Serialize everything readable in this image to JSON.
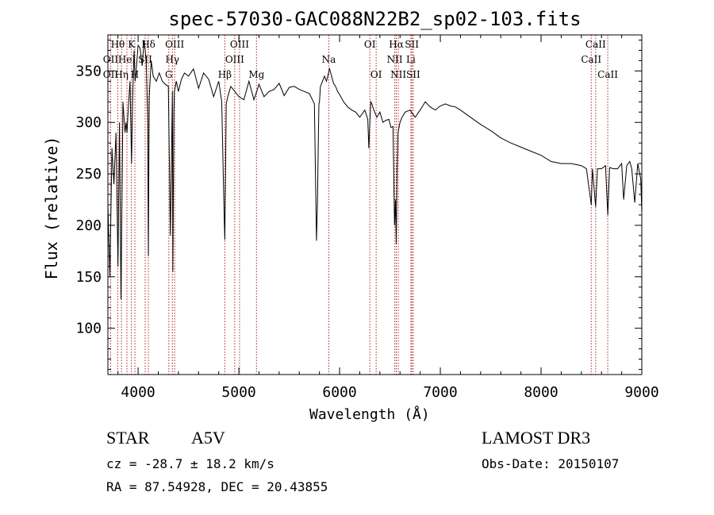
{
  "chart_data": {
    "type": "line",
    "title": "spec-57030-GAC088N22B2_sp02-103.fits",
    "xlabel": "Wavelength (Å)",
    "ylabel": "Flux (relative)",
    "xlim": [
      3700,
      9000
    ],
    "ylim": [
      55,
      385
    ],
    "xticks": [
      4000,
      5000,
      6000,
      7000,
      8000,
      9000
    ],
    "yticks": [
      100,
      150,
      200,
      250,
      300,
      350
    ],
    "series": [
      {
        "name": "spectrum",
        "x": [
          3700,
          3720,
          3740,
          3760,
          3780,
          3800,
          3815,
          3830,
          3850,
          3870,
          3880,
          3890,
          3900,
          3920,
          3935,
          3945,
          3960,
          3970,
          3980,
          4000,
          4020,
          4040,
          4060,
          4080,
          4095,
          4102,
          4110,
          4130,
          4150,
          4180,
          4210,
          4240,
          4270,
          4300,
          4320,
          4340,
          4345,
          4355,
          4360,
          4380,
          4400,
          4430,
          4460,
          4500,
          4550,
          4600,
          4650,
          4700,
          4750,
          4800,
          4830,
          4845,
          4855,
          4861,
          4865,
          4875,
          4890,
          4920,
          4960,
          5000,
          5050,
          5100,
          5150,
          5200,
          5250,
          5300,
          5350,
          5400,
          5450,
          5500,
          5550,
          5600,
          5650,
          5700,
          5750,
          5770,
          5780,
          5790,
          5795,
          5800,
          5810,
          5830,
          5850,
          5870,
          5890,
          5900,
          5920,
          5940,
          5960,
          5980,
          6000,
          6040,
          6080,
          6120,
          6160,
          6200,
          6250,
          6280,
          6290,
          6300,
          6310,
          6320,
          6340,
          6370,
          6400,
          6430,
          6460,
          6490,
          6510,
          6530,
          6545,
          6555,
          6563,
          6570,
          6580,
          6600,
          6620,
          6650,
          6700,
          6750,
          6800,
          6850,
          6900,
          6950,
          7000,
          7050,
          7100,
          7150,
          7200,
          7300,
          7400,
          7500,
          7600,
          7700,
          7800,
          7900,
          8000,
          8100,
          8200,
          8300,
          8400,
          8450,
          8498,
          8510,
          8542,
          8560,
          8600,
          8640,
          8662,
          8680,
          8720,
          8760,
          8800,
          8820,
          8850,
          8880,
          8900,
          8930,
          8960,
          8990,
          9000
        ],
        "values": [
          220,
          150,
          275,
          240,
          290,
          160,
          300,
          128,
          320,
          290,
          300,
          290,
          310,
          340,
          260,
          320,
          370,
          340,
          350,
          375,
          372,
          355,
          380,
          360,
          300,
          170,
          325,
          360,
          345,
          340,
          348,
          340,
          337,
          335,
          190,
          330,
          155,
          312,
          330,
          340,
          330,
          342,
          348,
          345,
          352,
          333,
          348,
          342,
          325,
          340,
          320,
          250,
          205,
          186,
          225,
          318,
          325,
          335,
          330,
          325,
          322,
          340,
          322,
          337,
          325,
          330,
          332,
          338,
          326,
          334,
          335,
          332,
          330,
          328,
          318,
          185,
          220,
          290,
          318,
          320,
          335,
          340,
          345,
          340,
          348,
          352,
          345,
          338,
          335,
          330,
          327,
          320,
          315,
          312,
          310,
          305,
          312,
          303,
          275,
          300,
          320,
          318,
          312,
          305,
          310,
          300,
          302,
          303,
          295,
          296,
          200,
          225,
          182,
          250,
          290,
          300,
          305,
          310,
          312,
          305,
          312,
          320,
          315,
          312,
          316,
          318,
          316,
          315,
          312,
          305,
          298,
          292,
          285,
          280,
          276,
          272,
          268,
          262,
          260,
          260,
          258,
          255,
          220,
          255,
          218,
          255,
          255,
          258,
          210,
          256,
          255,
          255,
          260,
          225,
          258,
          262,
          255,
          222,
          260,
          245,
          212
        ]
      }
    ],
    "lines": [
      {
        "name": "Hθ",
        "wl": 3798,
        "row": 0
      },
      {
        "name": "Hη",
        "wl": 3835,
        "row": 2
      },
      {
        "name": "K",
        "wl": 3934,
        "row": 0
      },
      {
        "name": "H",
        "wl": 3968,
        "row": 2
      },
      {
        "name": "Hδ",
        "wl": 4102,
        "row": 0
      },
      {
        "name": "OII",
        "wl": 3727,
        "row": 1
      },
      {
        "name": "OII",
        "wl": 3727,
        "row": 2
      },
      {
        "name": "HeI",
        "wl": 3889,
        "row": 1
      },
      {
        "name": "SII",
        "wl": 4070,
        "row": 1
      },
      {
        "name": "G",
        "wl": 4305,
        "row": 2
      },
      {
        "name": "Hγ",
        "wl": 4340,
        "row": 1
      },
      {
        "name": "OIII",
        "wl": 4363,
        "row": 0
      },
      {
        "name": "Hβ",
        "wl": 4861,
        "row": 2
      },
      {
        "name": "OIII",
        "wl": 4959,
        "row": 1
      },
      {
        "name": "OIII",
        "wl": 5007,
        "row": 0
      },
      {
        "name": "Mg",
        "wl": 5175,
        "row": 2
      },
      {
        "name": "Na",
        "wl": 5893,
        "row": 1
      },
      {
        "name": "OI",
        "wl": 6300,
        "row": 0
      },
      {
        "name": "OI",
        "wl": 6363,
        "row": 2
      },
      {
        "name": "NII",
        "wl": 6548,
        "row": 1
      },
      {
        "name": "Hα",
        "wl": 6563,
        "row": 0
      },
      {
        "name": "NII",
        "wl": 6583,
        "row": 2
      },
      {
        "name": "Li",
        "wl": 6708,
        "row": 1
      },
      {
        "name": "SII",
        "wl": 6717,
        "row": 0
      },
      {
        "name": "SII",
        "wl": 6731,
        "row": 2
      },
      {
        "name": "CaII",
        "wl": 8498,
        "row": 1
      },
      {
        "name": "CaII",
        "wl": 8542,
        "row": 0
      },
      {
        "name": "CaII",
        "wl": 8662,
        "row": 2
      }
    ],
    "line_color": "#b22222"
  },
  "info": {
    "class": "STAR",
    "subclass": "A5V",
    "cz": "cz = -28.7 ± 18.2 km/s",
    "coords": "RA =  87.54928, DEC =  20.43855",
    "survey": "LAMOST DR3",
    "obs_date": "Obs-Date: 20150107"
  }
}
